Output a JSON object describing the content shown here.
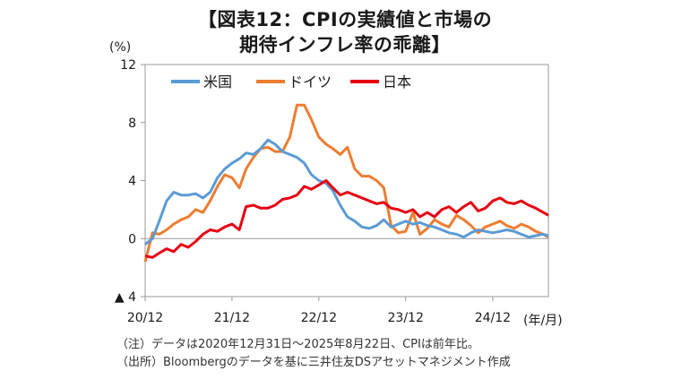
{
  "title_line1": "【図表12：CPIの実績値と市場の",
  "title_line2": "期待インフレ率の乖離】",
  "notes": {
    "note1": "（注）データは2020年12月31日～2025年8月22日、CPIは前年比。",
    "note2": "（出所）Bloombergのデータを基に三井住友DSアセットマネジメント作成"
  },
  "chart_data": {
    "type": "line",
    "ylabel": "(%)",
    "xlabel": "(年/月)",
    "ylim": [
      -4,
      12
    ],
    "xlim": [
      "2020-12-31",
      "2025-08-22"
    ],
    "y_ticks": [
      -4,
      0,
      4,
      8,
      12
    ],
    "y_tick_labels": [
      "▲ 4",
      "0",
      "4",
      "8",
      "12"
    ],
    "x_ticks": [
      "2020-12",
      "2021-12",
      "2022-12",
      "2023-12",
      "2024-12"
    ],
    "x_tick_labels": [
      "20/12",
      "21/12",
      "22/12",
      "23/12",
      "24/12"
    ],
    "legend_position": "top-left",
    "grid": false,
    "series": [
      {
        "name": "米国",
        "color": "#5b9bd5",
        "x": [
          "2020-12-31",
          "2021-01-31",
          "2021-02-28",
          "2021-03-31",
          "2021-04-30",
          "2021-05-31",
          "2021-06-30",
          "2021-07-31",
          "2021-08-31",
          "2021-09-30",
          "2021-10-31",
          "2021-11-30",
          "2021-12-31",
          "2022-01-31",
          "2022-02-28",
          "2022-03-31",
          "2022-04-30",
          "2022-05-31",
          "2022-06-30",
          "2022-07-31",
          "2022-08-31",
          "2022-09-30",
          "2022-10-31",
          "2022-11-30",
          "2022-12-31",
          "2023-01-31",
          "2023-02-28",
          "2023-03-31",
          "2023-04-30",
          "2023-05-31",
          "2023-06-30",
          "2023-07-31",
          "2023-08-31",
          "2023-09-30",
          "2023-10-31",
          "2023-11-30",
          "2023-12-31",
          "2024-01-31",
          "2024-02-29",
          "2024-03-31",
          "2024-04-30",
          "2024-05-31",
          "2024-06-30",
          "2024-07-31",
          "2024-08-31",
          "2024-09-30",
          "2024-10-31",
          "2024-11-30",
          "2024-12-31",
          "2025-01-31",
          "2025-02-28",
          "2025-03-31",
          "2025-04-30",
          "2025-05-31",
          "2025-06-30",
          "2025-07-31",
          "2025-08-22"
        ],
        "y": [
          -0.4,
          0.0,
          1.2,
          2.6,
          3.2,
          3.0,
          3.0,
          3.1,
          2.8,
          3.2,
          4.2,
          4.8,
          5.2,
          5.5,
          5.9,
          5.8,
          6.2,
          6.8,
          6.5,
          6.0,
          5.8,
          5.6,
          5.2,
          4.4,
          4.0,
          3.8,
          3.3,
          2.3,
          1.5,
          1.2,
          0.8,
          0.7,
          0.9,
          1.3,
          0.8,
          1.0,
          1.2,
          1.0,
          1.1,
          0.9,
          0.8,
          0.6,
          0.4,
          0.3,
          0.1,
          0.4,
          0.6,
          0.5,
          0.4,
          0.5,
          0.6,
          0.5,
          0.3,
          0.1,
          0.2,
          0.3,
          0.2
        ]
      },
      {
        "name": "ドイツ",
        "color": "#ed7d31",
        "x": [
          "2020-12-31",
          "2021-01-31",
          "2021-02-28",
          "2021-03-31",
          "2021-04-30",
          "2021-05-31",
          "2021-06-30",
          "2021-07-31",
          "2021-08-31",
          "2021-09-30",
          "2021-10-31",
          "2021-11-30",
          "2021-12-31",
          "2022-01-31",
          "2022-02-28",
          "2022-03-31",
          "2022-04-30",
          "2022-05-31",
          "2022-06-30",
          "2022-07-31",
          "2022-08-31",
          "2022-09-30",
          "2022-10-31",
          "2022-11-30",
          "2022-12-31",
          "2023-01-31",
          "2023-02-28",
          "2023-03-31",
          "2023-04-30",
          "2023-05-31",
          "2023-06-30",
          "2023-07-31",
          "2023-08-31",
          "2023-09-30",
          "2023-10-31",
          "2023-11-30",
          "2023-12-31",
          "2024-01-31",
          "2024-02-29",
          "2024-03-31",
          "2024-04-30",
          "2024-05-31",
          "2024-06-30",
          "2024-07-31",
          "2024-08-31",
          "2024-09-30",
          "2024-10-31",
          "2024-11-30",
          "2024-12-31",
          "2025-01-31",
          "2025-02-28",
          "2025-03-31",
          "2025-04-30",
          "2025-05-31",
          "2025-06-30",
          "2025-07-31",
          "2025-08-22"
        ],
        "y": [
          -1.6,
          0.4,
          0.3,
          0.6,
          1.0,
          1.3,
          1.5,
          2.0,
          1.8,
          2.6,
          3.6,
          4.4,
          4.2,
          3.5,
          4.8,
          5.6,
          6.2,
          6.3,
          6.0,
          6.0,
          7.0,
          9.2,
          9.2,
          8.2,
          7.0,
          6.5,
          6.2,
          5.8,
          6.3,
          4.8,
          4.3,
          4.3,
          4.0,
          3.5,
          0.9,
          0.4,
          0.5,
          1.8,
          0.3,
          0.7,
          1.3,
          1.0,
          0.8,
          1.6,
          1.3,
          0.9,
          0.4,
          0.8,
          1.0,
          1.2,
          0.9,
          0.7,
          1.0,
          0.8,
          0.5,
          0.3,
          0.1
        ]
      },
      {
        "name": "日本",
        "color": "#e60012",
        "x": [
          "2020-12-31",
          "2021-01-31",
          "2021-02-28",
          "2021-03-31",
          "2021-04-30",
          "2021-05-31",
          "2021-06-30",
          "2021-07-31",
          "2021-08-31",
          "2021-09-30",
          "2021-10-31",
          "2021-11-30",
          "2021-12-31",
          "2022-01-31",
          "2022-02-28",
          "2022-03-31",
          "2022-04-30",
          "2022-05-31",
          "2022-06-30",
          "2022-07-31",
          "2022-08-31",
          "2022-09-30",
          "2022-10-31",
          "2022-11-30",
          "2022-12-31",
          "2023-01-31",
          "2023-02-28",
          "2023-03-31",
          "2023-04-30",
          "2023-05-31",
          "2023-06-30",
          "2023-07-31",
          "2023-08-31",
          "2023-09-30",
          "2023-10-31",
          "2023-11-30",
          "2023-12-31",
          "2024-01-31",
          "2024-02-29",
          "2024-03-31",
          "2024-04-30",
          "2024-05-31",
          "2024-06-30",
          "2024-07-31",
          "2024-08-31",
          "2024-09-30",
          "2024-10-31",
          "2024-11-30",
          "2024-12-31",
          "2025-01-31",
          "2025-02-28",
          "2025-03-31",
          "2025-04-30",
          "2025-05-31",
          "2025-06-30",
          "2025-07-31",
          "2025-08-22"
        ],
        "y": [
          -1.2,
          -1.3,
          -1.0,
          -0.7,
          -0.9,
          -0.4,
          -0.6,
          -0.2,
          0.3,
          0.6,
          0.5,
          0.8,
          1.0,
          0.6,
          2.2,
          2.3,
          2.1,
          2.1,
          2.3,
          2.7,
          2.8,
          3.0,
          3.6,
          3.4,
          3.7,
          4.0,
          3.5,
          3.0,
          3.2,
          3.0,
          2.8,
          2.6,
          2.4,
          2.5,
          2.1,
          2.0,
          1.8,
          2.0,
          1.5,
          1.8,
          1.5,
          2.0,
          2.2,
          1.8,
          2.2,
          2.5,
          1.9,
          2.1,
          2.6,
          2.8,
          2.5,
          2.4,
          2.6,
          2.3,
          2.1,
          1.8,
          1.6
        ]
      }
    ]
  }
}
